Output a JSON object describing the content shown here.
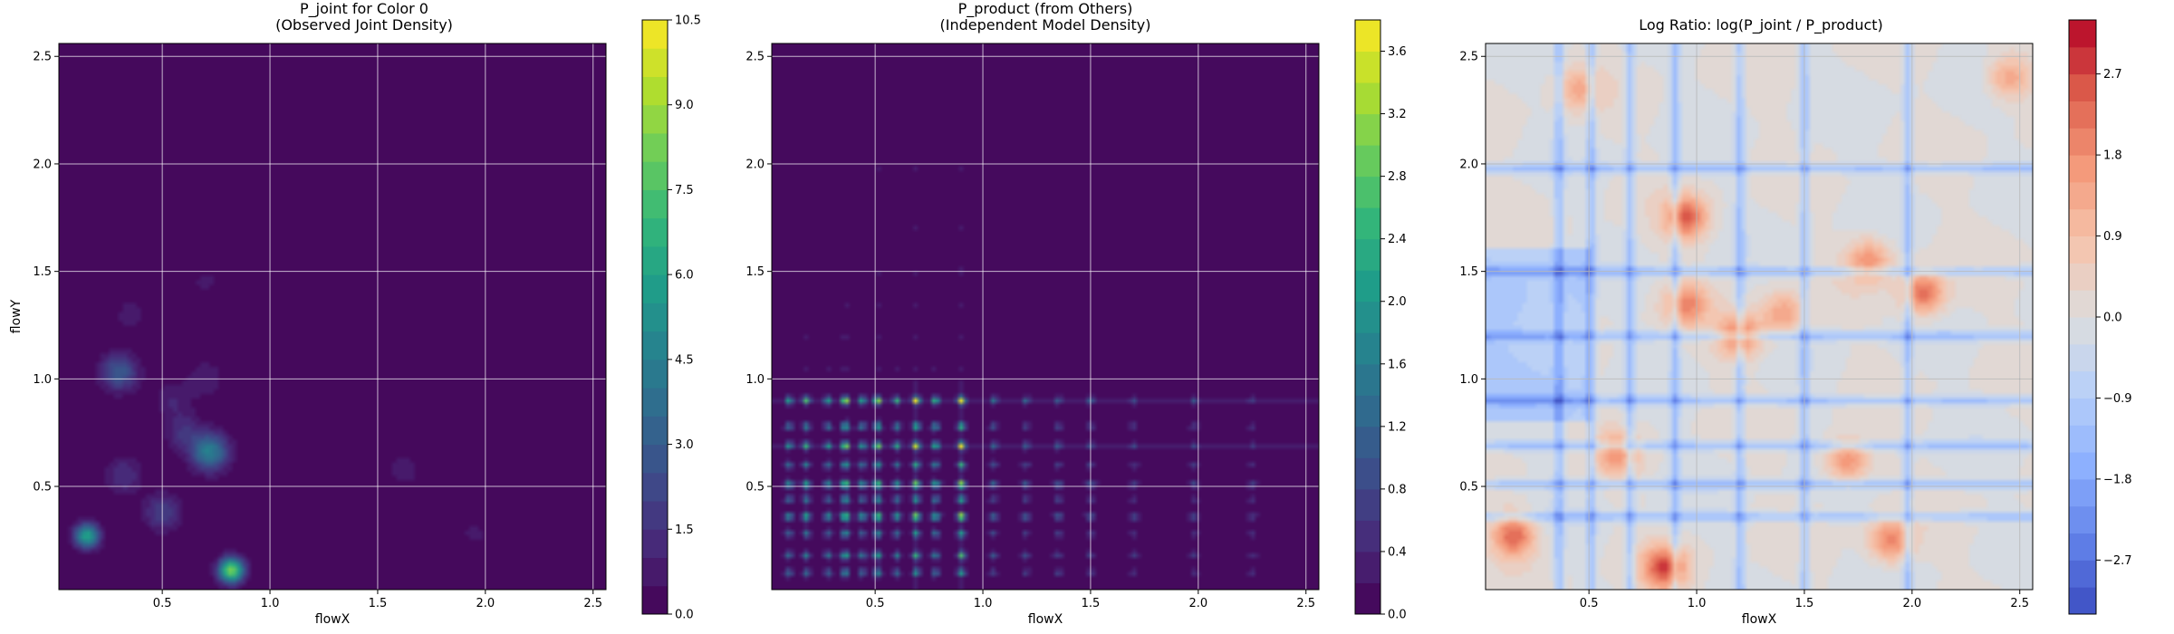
{
  "chart_data": [
    {
      "type": "heatmap",
      "title": "P_joint for Color 0\n(Observed Joint Density)",
      "xlabel": "flowX",
      "ylabel": "flowY",
      "xlim": [
        0.02,
        2.56
      ],
      "ylim": [
        0.02,
        2.56
      ],
      "xticks": [
        0.5,
        1.0,
        1.5,
        2.0,
        2.5
      ],
      "yticks": [
        0.5,
        1.0,
        1.5,
        2.0,
        2.5
      ],
      "xtick_labels": [
        "0.5",
        "1.0",
        "1.5",
        "2.0",
        "2.5"
      ],
      "ytick_labels": [
        "0.5",
        "1.0",
        "1.5",
        "2.0",
        "2.5"
      ],
      "grid": true,
      "colormap": "viridis",
      "colorbar": {
        "min": 0.0,
        "max": 10.5,
        "levels": 21,
        "ticks": [
          0.0,
          1.5,
          3.0,
          4.5,
          6.0,
          7.5,
          9.0,
          10.5
        ],
        "tick_labels": [
          "0.0",
          "1.5",
          "3.0",
          "4.5",
          "6.0",
          "7.5",
          "9.0",
          "10.5"
        ]
      },
      "peaks": [
        {
          "x": 0.15,
          "y": 0.27,
          "value": 6.0
        },
        {
          "x": 0.82,
          "y": 0.11,
          "value": 8.5
        },
        {
          "x": 0.72,
          "y": 0.66,
          "value": 4.5
        },
        {
          "x": 0.3,
          "y": 1.03,
          "value": 3.0
        },
        {
          "x": 0.5,
          "y": 0.38,
          "value": 2.0
        },
        {
          "x": 0.32,
          "y": 0.55,
          "value": 1.5
        },
        {
          "x": 0.6,
          "y": 0.75,
          "value": 1.5
        },
        {
          "x": 0.55,
          "y": 0.9,
          "value": 1.0
        },
        {
          "x": 0.7,
          "y": 1.0,
          "value": 1.0
        },
        {
          "x": 1.62,
          "y": 0.58,
          "value": 0.8
        },
        {
          "x": 1.95,
          "y": 0.28,
          "value": 0.6
        },
        {
          "x": 0.7,
          "y": 1.45,
          "value": 0.6
        },
        {
          "x": 0.35,
          "y": 1.3,
          "value": 0.7
        }
      ]
    },
    {
      "type": "heatmap",
      "title": "P_product (from Others)\n(Independent Model Density)",
      "xlabel": "flowX",
      "ylabel": "",
      "xlim": [
        0.02,
        2.56
      ],
      "ylim": [
        0.02,
        2.56
      ],
      "xticks": [
        0.5,
        1.0,
        1.5,
        2.0,
        2.5
      ],
      "yticks": [
        0.5,
        1.0,
        1.5,
        2.0,
        2.5
      ],
      "xtick_labels": [
        "0.5",
        "1.0",
        "1.5",
        "2.0",
        "2.5"
      ],
      "ytick_labels": [
        "0.5",
        "1.0",
        "1.5",
        "2.0",
        "2.5"
      ],
      "grid": true,
      "colormap": "viridis",
      "colorbar": {
        "min": 0.0,
        "max": 3.8,
        "levels": 19,
        "ticks": [
          0.0,
          0.4,
          0.8,
          1.2,
          1.6,
          2.0,
          2.4,
          2.8,
          3.2,
          3.6
        ],
        "tick_labels": [
          "0.0",
          "0.4",
          "0.8",
          "1.2",
          "1.6",
          "2.0",
          "2.4",
          "2.8",
          "3.2",
          "3.6"
        ]
      },
      "marginal_peaks": [
        {
          "at": 0.1,
          "weight": 0.55
        },
        {
          "at": 0.18,
          "weight": 0.65
        },
        {
          "at": 0.28,
          "weight": 0.55
        },
        {
          "at": 0.36,
          "weight": 1.0
        },
        {
          "at": 0.44,
          "weight": 0.6
        },
        {
          "at": 0.51,
          "weight": 0.95
        },
        {
          "at": 0.6,
          "weight": 0.6
        },
        {
          "at": 0.69,
          "weight": 0.95
        },
        {
          "at": 0.78,
          "weight": 0.7
        },
        {
          "at": 0.9,
          "weight": 1.0
        },
        {
          "at": 1.05,
          "weight": 0.35
        },
        {
          "at": 1.2,
          "weight": 0.3
        },
        {
          "at": 1.35,
          "weight": 0.3
        },
        {
          "at": 1.5,
          "weight": 0.28
        },
        {
          "at": 1.7,
          "weight": 0.2
        },
        {
          "at": 1.98,
          "weight": 0.22
        },
        {
          "at": 2.25,
          "weight": 0.15
        }
      ]
    },
    {
      "type": "heatmap",
      "title": "Log Ratio: log(P_joint / P_product)",
      "xlabel": "flowX",
      "ylabel": "",
      "xlim": [
        0.02,
        2.56
      ],
      "ylim": [
        0.02,
        2.56
      ],
      "xticks": [
        0.5,
        1.0,
        1.5,
        2.0,
        2.5
      ],
      "yticks": [
        0.5,
        1.0,
        1.5,
        2.0,
        2.5
      ],
      "xtick_labels": [
        "0.5",
        "1.0",
        "1.5",
        "2.0",
        "2.5"
      ],
      "ytick_labels": [
        "0.5",
        "1.0",
        "1.5",
        "2.0",
        "2.5"
      ],
      "grid": true,
      "colormap": "coolwarm",
      "colorbar": {
        "min": -3.3,
        "max": 3.3,
        "levels": 22,
        "ticks": [
          -2.7,
          -1.8,
          -0.9,
          0.0,
          0.9,
          1.8,
          2.7
        ],
        "tick_labels": [
          "−2.7",
          "−1.8",
          "−0.9",
          "0.0",
          "0.9",
          "1.8",
          "2.7"
        ]
      },
      "hot_spots": [
        {
          "x": 0.95,
          "y": 1.75,
          "value": 2.4
        },
        {
          "x": 2.05,
          "y": 1.4,
          "value": 2.3
        },
        {
          "x": 0.15,
          "y": 0.27,
          "value": 2.4
        },
        {
          "x": 0.85,
          "y": 0.12,
          "value": 2.6
        },
        {
          "x": 1.2,
          "y": 1.2,
          "value": 2.1
        },
        {
          "x": 1.7,
          "y": 0.62,
          "value": 1.9
        },
        {
          "x": 1.9,
          "y": 0.25,
          "value": 2.0
        },
        {
          "x": 0.95,
          "y": 1.35,
          "value": 1.8
        },
        {
          "x": 1.8,
          "y": 1.55,
          "value": 1.7
        },
        {
          "x": 2.45,
          "y": 2.4,
          "value": 1.5
        },
        {
          "x": 0.63,
          "y": 0.65,
          "value": 1.5
        },
        {
          "x": 0.45,
          "y": 2.35,
          "value": 1.2
        },
        {
          "x": 1.4,
          "y": 1.3,
          "value": 1.5
        }
      ],
      "cold_bands": [
        0.36,
        0.51,
        0.69,
        0.9,
        1.2,
        1.5,
        1.98
      ]
    }
  ]
}
